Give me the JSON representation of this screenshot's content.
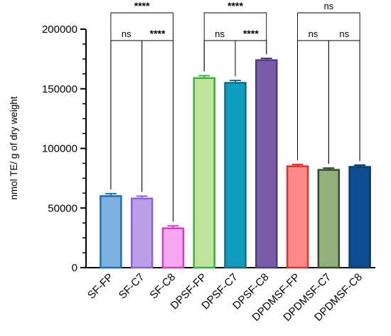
{
  "chart_data": {
    "type": "bar",
    "ylabel": "nmol TE/ g of dry weight",
    "xlabel": "",
    "ylim": [
      0,
      200000
    ],
    "yticks": [
      0,
      50000,
      100000,
      150000,
      200000
    ],
    "ytick_labels": [
      "0",
      "50000",
      "100000",
      "150000",
      "200000"
    ],
    "categories": [
      "SF-FP",
      "SF-C7",
      "SF-C8",
      "DPSF-FP",
      "DPSF-C7",
      "DPSF-C8",
      "DPDMSF-FP",
      "DPDMSF-C7",
      "DPDMSF-C8"
    ],
    "values": [
      60000,
      58000,
      33000,
      159000,
      155000,
      174000,
      85000,
      82000,
      84500
    ],
    "error": [
      2000,
      2000,
      2000,
      2000,
      2000,
      1500,
      1500,
      1500,
      1500
    ],
    "fill_colors": [
      "#7FB1DE",
      "#B9A0E6",
      "#F6A9F0",
      "#BFE39A",
      "#0E9DBF",
      "#7A5CA8",
      "#FF8A8A",
      "#93B07C",
      "#0C4E8E"
    ],
    "edge_colors": [
      "#1F6FB5",
      "#8E62D6",
      "#CC3FC6",
      "#3CB043",
      "#1D6A86",
      "#4E3A86",
      "#D9302B",
      "#2F4A2F",
      "#0B3772"
    ],
    "significance": [
      {
        "from": 0,
        "to": 1,
        "label": "ns",
        "level": 1
      },
      {
        "from": 1,
        "to": 2,
        "label": "****",
        "level": 1
      },
      {
        "from": 0,
        "to": 2,
        "label": "****",
        "level": 2
      },
      {
        "from": 3,
        "to": 4,
        "label": "ns",
        "level": 1
      },
      {
        "from": 4,
        "to": 5,
        "label": "****",
        "level": 1
      },
      {
        "from": 3,
        "to": 5,
        "label": "****",
        "level": 2
      },
      {
        "from": 6,
        "to": 7,
        "label": "ns",
        "level": 1
      },
      {
        "from": 7,
        "to": 8,
        "label": "ns",
        "level": 1
      },
      {
        "from": 6,
        "to": 8,
        "label": "ns",
        "level": 2
      }
    ],
    "grid": false,
    "legend": "none"
  }
}
